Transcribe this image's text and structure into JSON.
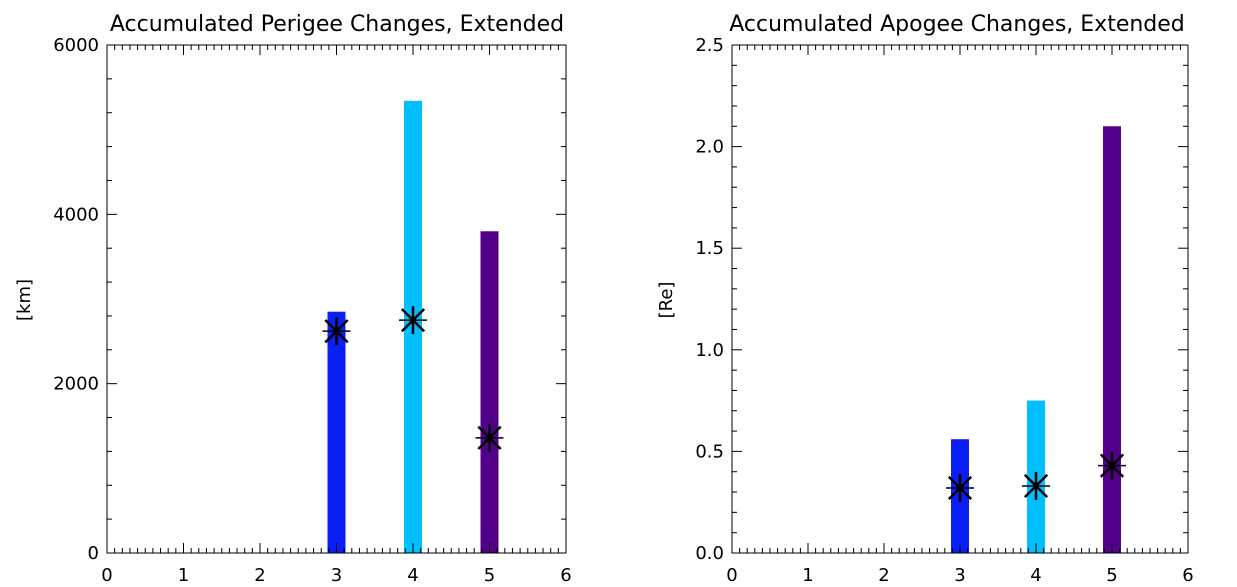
{
  "chart_data": [
    {
      "type": "bar",
      "title": "Accumulated Perigee Changes, Extended",
      "xlabel": "",
      "ylabel": "[km]",
      "xlim": [
        0,
        6
      ],
      "ylim": [
        0,
        6000
      ],
      "x_ticks": [
        "0",
        "1",
        "2",
        "3",
        "4",
        "5",
        "6"
      ],
      "y_ticks": [
        "0",
        "2000",
        "4000",
        "6000"
      ],
      "bars": [
        {
          "x": 3,
          "value": 2850,
          "color": "#0a1ff5"
        },
        {
          "x": 4,
          "value": 5340,
          "color": "#00bfff"
        },
        {
          "x": 5,
          "value": 3800,
          "color": "#52008a"
        }
      ],
      "markers": [
        {
          "x": 3,
          "value": 2620
        },
        {
          "x": 4,
          "value": 2750
        },
        {
          "x": 5,
          "value": 1360
        }
      ],
      "marker_style": "asterisk",
      "grid": false
    },
    {
      "type": "bar",
      "title": "Accumulated Apogee Changes, Extended",
      "xlabel": "",
      "ylabel": "[Re]",
      "xlim": [
        0,
        6
      ],
      "ylim": [
        0,
        2.5
      ],
      "x_ticks": [
        "0",
        "1",
        "2",
        "3",
        "4",
        "5",
        "6"
      ],
      "y_ticks": [
        "0.0",
        "0.5",
        "1.0",
        "1.5",
        "2.0",
        "2.5"
      ],
      "bars": [
        {
          "x": 3,
          "value": 0.56,
          "color": "#0a1ff5"
        },
        {
          "x": 4,
          "value": 0.75,
          "color": "#00bfff"
        },
        {
          "x": 5,
          "value": 2.1,
          "color": "#52008a"
        }
      ],
      "markers": [
        {
          "x": 3,
          "value": 0.32
        },
        {
          "x": 4,
          "value": 0.33
        },
        {
          "x": 5,
          "value": 0.43
        }
      ],
      "marker_style": "asterisk",
      "grid": false
    }
  ]
}
